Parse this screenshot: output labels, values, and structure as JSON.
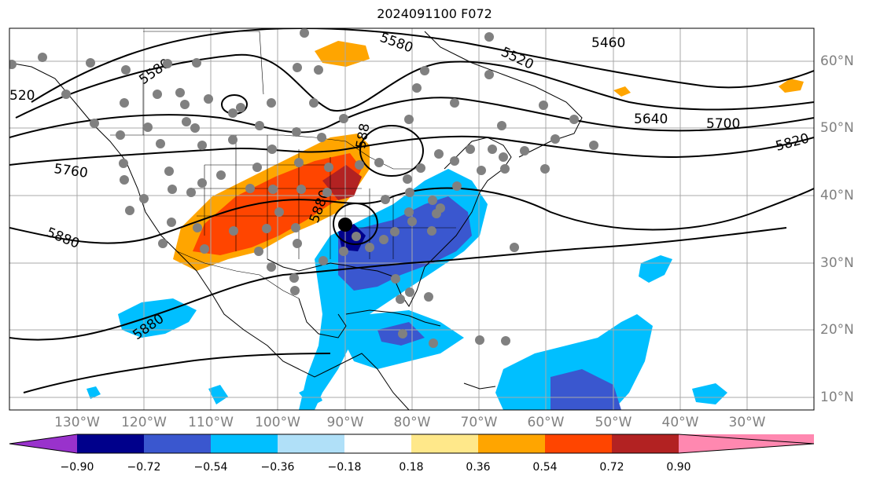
{
  "title": "2024091100 F072",
  "lon_labels": [
    "130°W",
    "120°W",
    "110°W",
    "100°W",
    "90°W",
    "80°W",
    "70°W",
    "60°W",
    "50°W",
    "40°W",
    "30°W"
  ],
  "lat_labels": [
    "60°N",
    "50°N",
    "40°N",
    "30°N",
    "20°N",
    "10°N"
  ],
  "contour_labels": [
    "520",
    "5580",
    "5580",
    "5520",
    "5460",
    "5640",
    "5700",
    "5820",
    "5760",
    "5880",
    "5880",
    "5880",
    "588"
  ],
  "colorbar": {
    "ticks": [
      "−0.90",
      "−0.72",
      "−0.54",
      "−0.36",
      "−0.18",
      "0.18",
      "0.36",
      "0.54",
      "0.72",
      "0.90"
    ],
    "colors": [
      "#9932cc",
      "#00008b",
      "#3a57cf",
      "#00bfff",
      "#b0e0f8",
      "#ffffff",
      "#ffe88a",
      "#ffa500",
      "#ff4500",
      "#b22222",
      "#ff88b0"
    ]
  },
  "marker": {
    "lon": -91,
    "lat": 35.5
  }
}
